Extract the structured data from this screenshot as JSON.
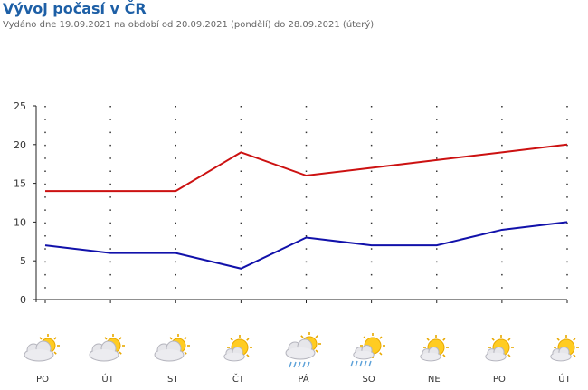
{
  "page": {
    "title": "Vývoj počasí v ČR",
    "subtitle": "Vydáno dne 19.09.2021 na období od 20.09.2021 (pondělí) do 28.09.2021 (úterý)"
  },
  "chart_data": {
    "type": "line",
    "categories": [
      "PO",
      "ÚT",
      "ST",
      "ČT",
      "PÁ",
      "SO",
      "NE",
      "PO",
      "ÚT"
    ],
    "series": [
      {
        "values": [
          14,
          14,
          14,
          19,
          16,
          17,
          18,
          19,
          20
        ],
        "color": "#cc1111"
      },
      {
        "values": [
          7,
          6,
          6,
          4,
          8,
          7,
          7,
          9,
          10
        ],
        "color": "#1111aa"
      }
    ],
    "ylim": [
      0,
      25
    ],
    "yticks": [
      "0",
      "5",
      "10",
      "15",
      "20",
      "25"
    ],
    "grid": "dotted"
  },
  "forecast": [
    {
      "day": "PO",
      "icon": "partly-cloudy-icon"
    },
    {
      "day": "ÚT",
      "icon": "partly-cloudy-icon"
    },
    {
      "day": "ST",
      "icon": "partly-cloudy-icon"
    },
    {
      "day": "ČT",
      "icon": "sun-small-cloud-icon"
    },
    {
      "day": "PÁ",
      "icon": "partly-cloudy-rain-icon"
    },
    {
      "day": "SO",
      "icon": "sun-cloud-drizzle-icon"
    },
    {
      "day": "NE",
      "icon": "sun-small-cloud-icon"
    },
    {
      "day": "PO",
      "icon": "sun-small-cloud-icon"
    },
    {
      "day": "ÚT",
      "icon": "sun-small-cloud-icon"
    }
  ]
}
